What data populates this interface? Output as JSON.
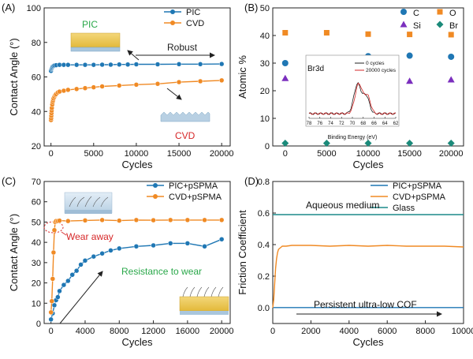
{
  "chart_data": [
    {
      "panel": "(A)",
      "type": "line",
      "xlabel": "Cycles",
      "ylabel": "Contact Angle (°)",
      "xlim": [
        -800,
        21000
      ],
      "ylim": [
        20,
        100
      ],
      "xticks": [
        0,
        5000,
        10000,
        15000,
        20000
      ],
      "yticks": [
        20,
        40,
        60,
        80,
        100
      ],
      "legend": "top-right",
      "series": [
        {
          "name": "PIC",
          "color": "#1f77b4",
          "x": [
            0,
            50,
            100,
            150,
            200,
            300,
            400,
            600,
            1000,
            1500,
            2000,
            3000,
            4000,
            5000,
            6000,
            7000,
            8000,
            9000,
            10000,
            12500,
            15000,
            17500,
            20000
          ],
          "y": [
            63.5,
            64.5,
            65,
            65.5,
            66,
            66.3,
            66.6,
            66.8,
            67,
            67,
            67,
            67,
            67,
            67,
            67.1,
            67.1,
            67.2,
            67.2,
            67.3,
            67.3,
            67.4,
            67.4,
            67.5
          ]
        },
        {
          "name": "CVD",
          "color": "#f08a24",
          "x": [
            0,
            20,
            40,
            60,
            80,
            100,
            150,
            200,
            250,
            300,
            400,
            500,
            600,
            800,
            1000,
            1500,
            2000,
            3000,
            4000,
            5000,
            6000,
            8000,
            10000,
            12500,
            15000,
            17500,
            20000
          ],
          "y": [
            35,
            36,
            37.5,
            39,
            40.5,
            42,
            44,
            45.5,
            46.5,
            47.5,
            48.5,
            49.5,
            50,
            51,
            51.5,
            52,
            52.5,
            53,
            53.5,
            54,
            54.5,
            55,
            55.5,
            56,
            57,
            57.5,
            58
          ]
        }
      ],
      "annotations": {
        "pic": "PIC",
        "robust": "Robust",
        "cvd": "CVD"
      }
    },
    {
      "panel": "(B)",
      "type": "scatter",
      "xlabel": "Cycles",
      "ylabel": "Atomic %",
      "xlim": [
        -1500,
        21500
      ],
      "ylim": [
        0,
        50
      ],
      "xticks": [
        0,
        5000,
        10000,
        15000,
        20000
      ],
      "yticks": [
        0,
        10,
        20,
        30,
        40,
        50
      ],
      "legend": "top-right",
      "series": [
        {
          "name": "C",
          "color": "#1f77b4",
          "marker": "circle",
          "x": [
            0,
            5000,
            10000,
            15000,
            20000
          ],
          "y": [
            30,
            30.5,
            32.5,
            32.7,
            32.3
          ]
        },
        {
          "name": "O",
          "color": "#f08a24",
          "marker": "square",
          "x": [
            0,
            5000,
            10000,
            15000,
            20000
          ],
          "y": [
            41,
            41,
            40.5,
            40.4,
            40.3
          ]
        },
        {
          "name": "Si",
          "color": "#7b2fbe",
          "marker": "triangle",
          "x": [
            0,
            5000,
            10000,
            15000,
            20000
          ],
          "y": [
            24.5,
            24.5,
            24,
            23.5,
            24
          ]
        },
        {
          "name": "Br",
          "color": "#1b8a7a",
          "marker": "diamond",
          "x": [
            0,
            5000,
            10000,
            15000,
            20000
          ],
          "y": [
            1,
            1,
            1,
            1,
            1
          ]
        }
      ],
      "inset": {
        "peak_label": "Br3d",
        "xlabel": "Binding Energy (eV)",
        "xticks": [
          78,
          76,
          74,
          72,
          70,
          68,
          66,
          64,
          62
        ],
        "series": [
          {
            "name": "0 cycles",
            "color": "#222222"
          },
          {
            "name": "20000 cycles",
            "color": "#d62728"
          }
        ]
      }
    },
    {
      "panel": "(C)",
      "type": "line",
      "xlabel": "Cycles",
      "ylabel": "Contact Angle (°)",
      "xlim": [
        -800,
        21000
      ],
      "ylim": [
        0,
        70
      ],
      "xticks": [
        0,
        4000,
        8000,
        12000,
        16000,
        20000
      ],
      "yticks": [
        0,
        10,
        20,
        30,
        40,
        50,
        60,
        70
      ],
      "legend": "top-right",
      "series": [
        {
          "name": "PIC+pSPMA",
          "color": "#1f77b4",
          "x": [
            0,
            200,
            400,
            600,
            800,
            1000,
            1500,
            2000,
            2500,
            3000,
            3500,
            4000,
            5000,
            6000,
            7000,
            8000,
            10000,
            12000,
            14000,
            16000,
            18000,
            20000
          ],
          "y": [
            2,
            5,
            9,
            11.5,
            13,
            16,
            19,
            21,
            24,
            26,
            29,
            31,
            33,
            34.5,
            36,
            37,
            38,
            38.5,
            39.5,
            39.5,
            38,
            41.5
          ]
        },
        {
          "name": "CVD+pSPMA",
          "color": "#f08a24",
          "x": [
            0,
            100,
            200,
            300,
            400,
            500,
            600,
            800,
            1000,
            2000,
            4000,
            6000,
            8000,
            10000,
            12000,
            14000,
            16000,
            18000,
            20000
          ],
          "y": [
            5.5,
            11,
            22,
            35,
            46,
            50,
            50.5,
            50.5,
            50.7,
            50.5,
            50.8,
            51,
            50.7,
            51,
            50.9,
            51,
            51,
            51,
            51
          ]
        }
      ],
      "annotations": {
        "wear_away": "Wear away",
        "resistance": "Resistance to wear"
      }
    },
    {
      "panel": "(D)",
      "type": "line",
      "xlabel": "Cycles",
      "ylabel": "Friction Coefficient",
      "xlim": [
        0,
        10000
      ],
      "ylim": [
        -0.1,
        0.8
      ],
      "xticks": [
        0,
        2000,
        4000,
        6000,
        8000,
        10000
      ],
      "yticks": [
        0.0,
        0.2,
        0.4,
        0.6,
        0.8
      ],
      "legend": "top-right",
      "medium_label": "Aqueous medium",
      "series": [
        {
          "name": "PIC+pSPMA",
          "color": "#1f77b4",
          "x": [
            0,
            10000
          ],
          "y": [
            0.001,
            0.001
          ]
        },
        {
          "name": "CVD+pSPMA",
          "color": "#f08a24",
          "x": [
            0,
            50,
            100,
            150,
            200,
            250,
            300,
            400,
            500,
            700,
            1000,
            2000,
            3000,
            4000,
            5000,
            6000,
            7000,
            8000,
            9000,
            10000
          ],
          "y": [
            0.0,
            0.05,
            0.15,
            0.25,
            0.31,
            0.35,
            0.37,
            0.38,
            0.39,
            0.39,
            0.395,
            0.395,
            0.39,
            0.395,
            0.39,
            0.395,
            0.39,
            0.39,
            0.39,
            0.385
          ]
        },
        {
          "name": "Glass",
          "color": "#1b8a8a",
          "x": [
            0,
            10000
          ],
          "y": [
            0.59,
            0.59
          ]
        }
      ],
      "annotations": {
        "persistent": "Persistent ultra-low COF"
      }
    }
  ]
}
